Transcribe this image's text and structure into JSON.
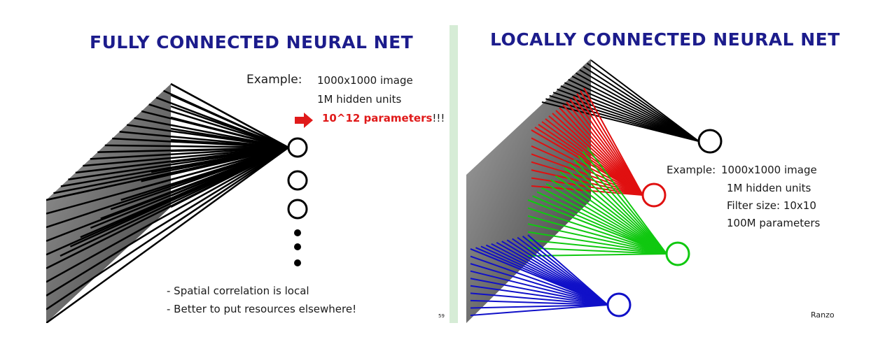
{
  "left_slide": {
    "title": "FULLY CONNECTED NEURAL NET",
    "example_label": "Example:",
    "example_line1": "1000x1000 image",
    "example_line2": "1M hidden units",
    "param_text": "10^12 parameters",
    "param_suffix": "!!!",
    "bullet1": "- Spatial correlation is local",
    "bullet2": "- Better to put resources elsewhere!",
    "page_number": "59"
  },
  "right_slide": {
    "title": "LOCALLY CONNECTED NEURAL NET",
    "example_label": "Example:",
    "example_line1": "1000x1000 image",
    "example_line2": "1M hidden units",
    "example_line3": "Filter size: 10x10",
    "example_line4": "100M parameters",
    "credit": "Ranzo"
  },
  "colors": {
    "title": "#1c1c8c",
    "highlight": "#e01a1a",
    "black_units": "#000000",
    "red_units": "#e01010",
    "green_units": "#10c810",
    "blue_units": "#1010c8"
  }
}
